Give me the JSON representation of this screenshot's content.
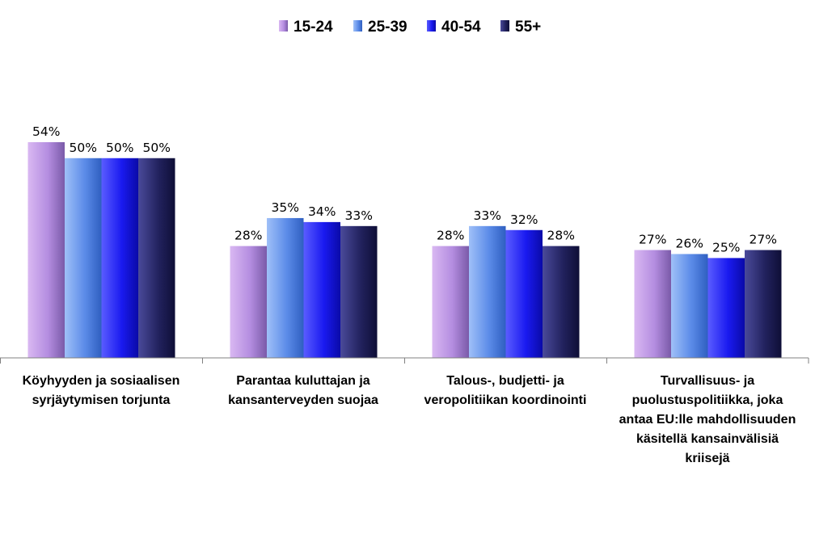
{
  "chart_data": {
    "type": "bar",
    "title": "",
    "xlabel": "",
    "ylabel": "",
    "ylim": [
      0,
      60
    ],
    "grid": false,
    "legend_position": "top",
    "value_suffix": "%",
    "categories": [
      [
        "Köyhyyden ja sosiaalisen",
        "syrjäytymisen torjunta"
      ],
      [
        "Parantaa kuluttajan ja",
        "kansanterveyden suojaa"
      ],
      [
        "Talous-, budjetti- ja",
        "veropolitiikan koordinointi"
      ],
      [
        "Turvallisuus- ja",
        "puolustuspolitiikka, joka",
        "antaa EU:lle mahdollisuuden",
        "käsitellä kansainvälisiä",
        "kriisejä"
      ]
    ],
    "series": [
      {
        "name": "15-24",
        "values": [
          54,
          28,
          28,
          27
        ],
        "color_top": "#d9b8f2",
        "color_main": "#b48de0",
        "color_edge": "#7a5aa8"
      },
      {
        "name": "25-39",
        "values": [
          50,
          35,
          33,
          26
        ],
        "color_top": "#9fc0f8",
        "color_main": "#5b8be8",
        "color_edge": "#2f5fc0"
      },
      {
        "name": "40-54",
        "values": [
          50,
          34,
          32,
          25
        ],
        "color_top": "#5a5cff",
        "color_main": "#1a1af0",
        "color_edge": "#0a0aa8"
      },
      {
        "name": "55+",
        "values": [
          50,
          33,
          28,
          27
        ],
        "color_top": "#4a4a9a",
        "color_main": "#22225e",
        "color_edge": "#0e0e36"
      }
    ]
  }
}
